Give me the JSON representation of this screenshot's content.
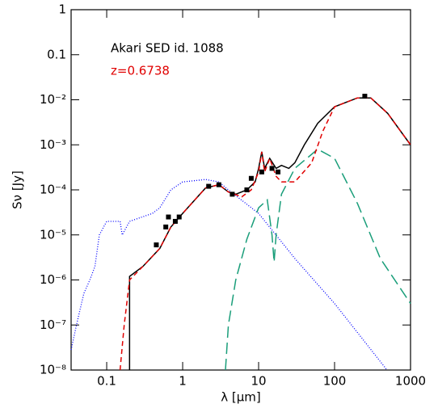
{
  "chart_data": {
    "type": "line",
    "xlabel": "λ [μm]",
    "ylabel": "Sν [Jy]",
    "annotations": [
      {
        "text": "Akari SED id. 1088",
        "color": "#000000"
      },
      {
        "text": "z=0.6738",
        "color": "#e00000"
      }
    ],
    "xscale": "log",
    "yscale": "log",
    "xlim": [
      0.034,
      1000
    ],
    "ylim": [
      1e-08,
      1
    ],
    "xticks": [
      0.1,
      1,
      10,
      100,
      1000
    ],
    "yticks": [
      {
        "value": 1e-08,
        "label": "10⁻⁸"
      },
      {
        "value": 1e-07,
        "label": "10⁻⁷"
      },
      {
        "value": 1e-06,
        "label": "10⁻⁶"
      },
      {
        "value": 1e-05,
        "label": "10⁻⁵"
      },
      {
        "value": 0.0001,
        "label": "10⁻⁴"
      },
      {
        "value": 0.001,
        "label": "10⁻³"
      },
      {
        "value": 0.01,
        "label": "10⁻²"
      },
      0.1,
      1
    ],
    "series": [
      {
        "color": "#0000ff",
        "style": "dotted",
        "x": [
          0.034,
          0.04,
          0.05,
          0.06,
          0.07,
          0.08,
          0.1,
          0.15,
          0.16,
          0.2,
          0.4,
          0.5,
          0.7,
          1,
          2,
          3,
          4,
          10,
          30,
          100,
          490
        ],
        "values": [
          2.8e-08,
          1e-07,
          5e-07,
          1e-06,
          2e-06,
          1e-05,
          2e-05,
          2e-05,
          1e-05,
          2e-05,
          3e-05,
          4e-05,
          0.0001,
          0.00015,
          0.00017,
          0.00015,
          0.0001,
          3e-05,
          3e-06,
          3e-07,
          1e-08
        ]
      },
      {
        "color": "#1a9e7a",
        "style": "longdash",
        "x": [
          3.66,
          4,
          5,
          7,
          10,
          13,
          15,
          16,
          17,
          20,
          30,
          60,
          100,
          200,
          400,
          1000
        ],
        "values": [
          1e-08,
          1e-07,
          1e-06,
          8e-06,
          4e-05,
          6e-05,
          1e-05,
          2.5e-06,
          1e-05,
          8e-05,
          0.0003,
          0.0008,
          0.0005,
          5e-05,
          3e-06,
          3e-07
        ]
      },
      {
        "color": "#000000",
        "style": "solid",
        "x": [
          0.2,
          0.2,
          0.3,
          0.5,
          0.7,
          1,
          2,
          3,
          4,
          5,
          7,
          9,
          10,
          11,
          12,
          14,
          17,
          20,
          25,
          30,
          40,
          60,
          100,
          200,
          300,
          500,
          1000
        ],
        "values": [
          1e-08,
          1.2e-06,
          2e-06,
          5e-06,
          1.5e-05,
          3e-05,
          0.00011,
          0.00013,
          9e-05,
          8e-05,
          0.0001,
          0.00015,
          0.0003,
          0.0007,
          0.0003,
          0.0005,
          0.0003,
          0.00035,
          0.0003,
          0.0004,
          0.001,
          0.003,
          0.007,
          0.011,
          0.011,
          0.005,
          0.001
        ]
      },
      {
        "color": "#e00000",
        "style": "dashed",
        "x": [
          0.15,
          0.17,
          0.2,
          0.3,
          0.5,
          0.7,
          1,
          2,
          3,
          4,
          6,
          8,
          10,
          11,
          12,
          14,
          17,
          20,
          30,
          50,
          70,
          100,
          200,
          300,
          500,
          1000
        ],
        "values": [
          1e-08,
          1e-07,
          1e-06,
          2e-06,
          5e-06,
          1.5e-05,
          3e-05,
          0.00011,
          0.00013,
          9e-05,
          7e-05,
          0.0001,
          0.00025,
          0.0007,
          0.00025,
          0.0005,
          0.0002,
          0.00015,
          0.00015,
          0.0004,
          0.002,
          0.007,
          0.011,
          0.011,
          0.005,
          0.001
        ]
      },
      {
        "color": "#000000",
        "style": "points",
        "x": [
          0.45,
          0.6,
          0.65,
          0.8,
          0.9,
          2.2,
          3,
          4.5,
          7,
          8,
          11,
          15,
          18,
          250
        ],
        "values": [
          6e-06,
          1.5e-05,
          2.5e-05,
          2e-05,
          2.5e-05,
          0.00012,
          0.00013,
          8e-05,
          0.0001,
          0.00018,
          0.00025,
          0.0003,
          0.00025,
          0.012
        ]
      }
    ]
  }
}
